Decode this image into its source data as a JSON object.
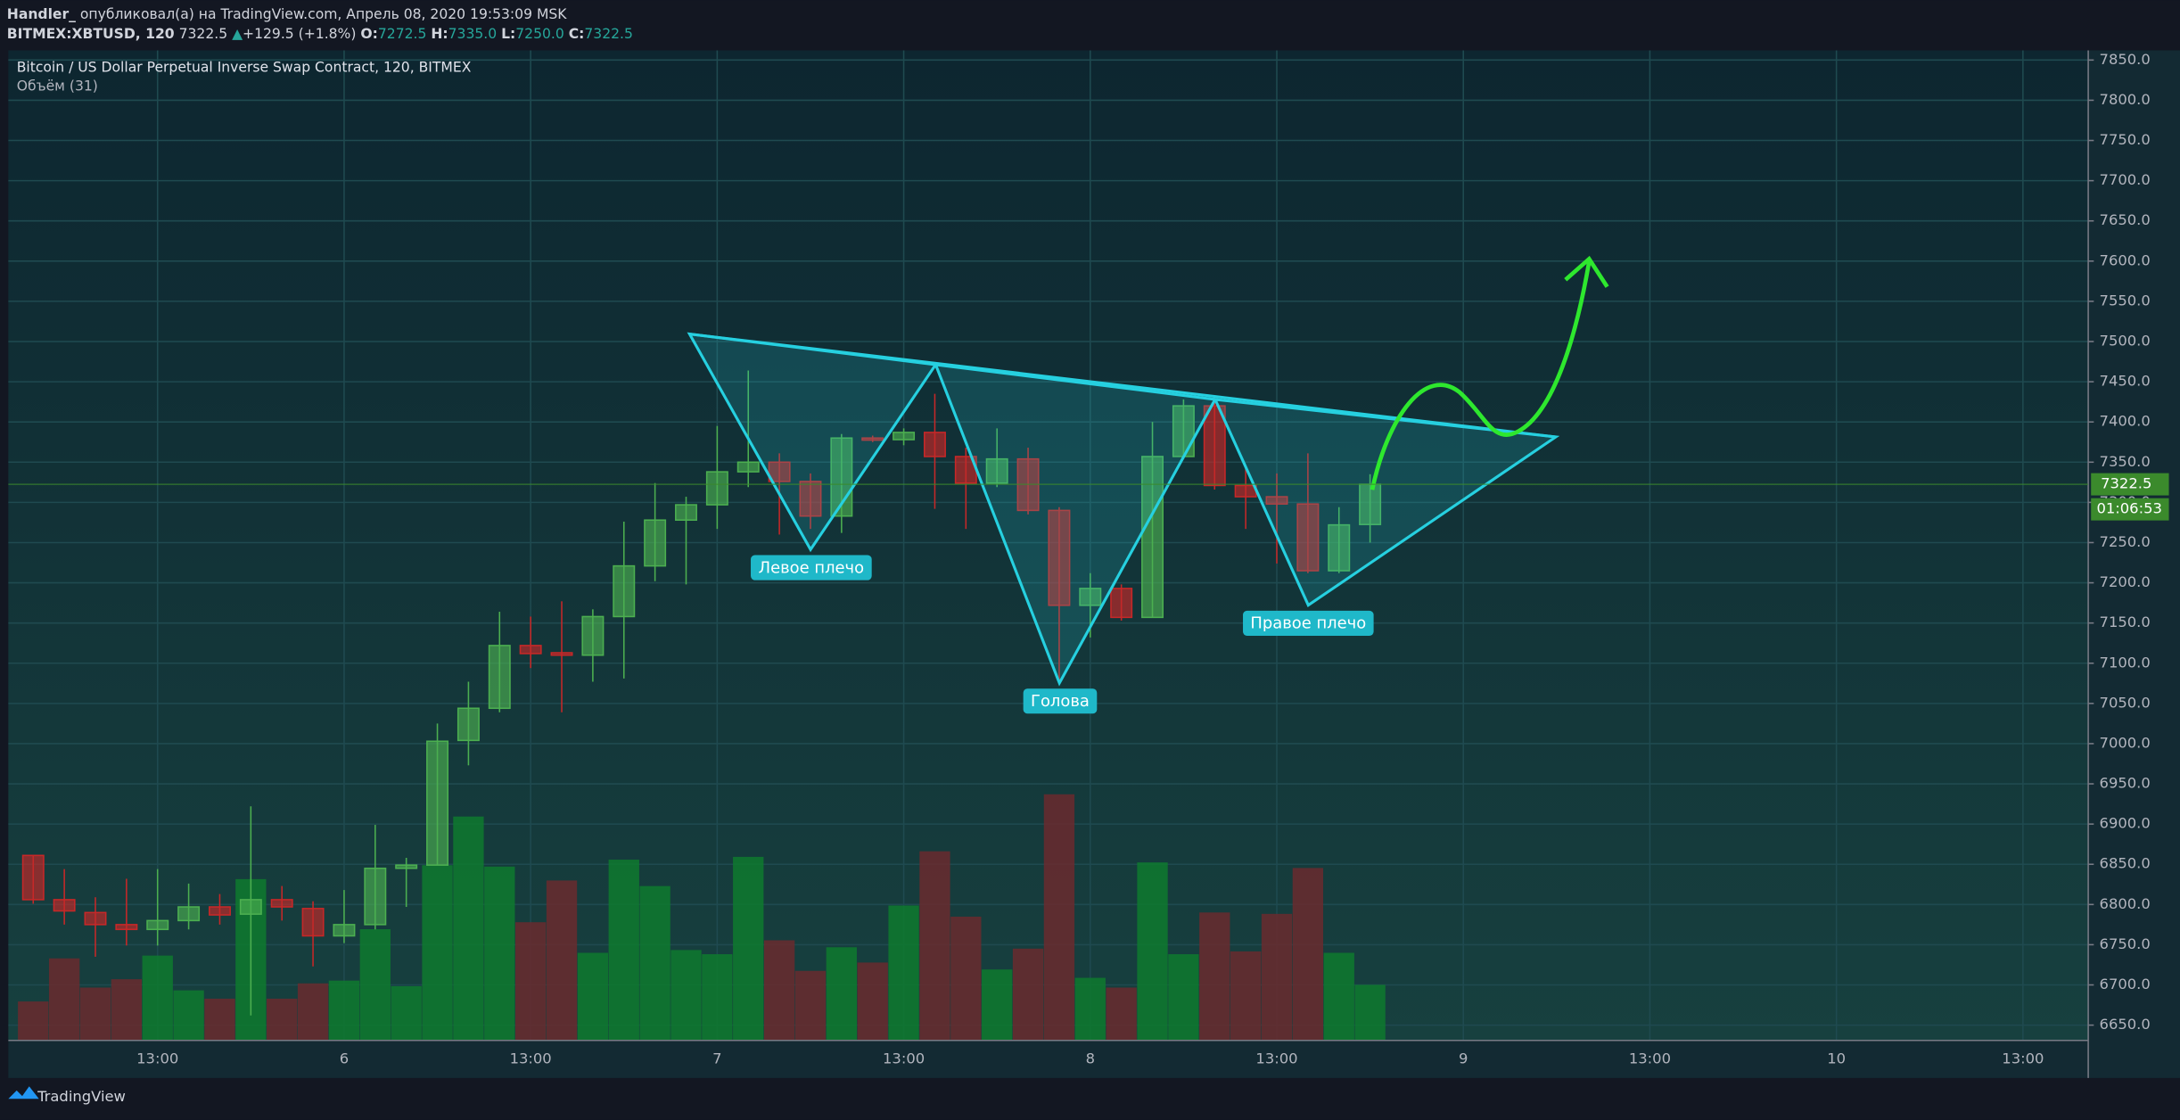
{
  "header": {
    "author": "Handler_",
    "published": "опубликовал(а) на TradingView.com, Апрель 08, 2020 19:53:09 MSK",
    "symbol": "BITMEX:XBTUSD, 120",
    "price": "7322.5",
    "change_arrow": "▲",
    "change": "+129.5 (+1.8%)",
    "ohlc": [
      {
        "key": "O:",
        "value": "7272.5"
      },
      {
        "key": "H:",
        "value": "7335.0"
      },
      {
        "key": "L:",
        "value": "7250.0"
      },
      {
        "key": "C:",
        "value": "7322.5"
      }
    ]
  },
  "chart_data": {
    "type": "candlestick",
    "title": "Bitcoin / US Dollar Perpetual Inverse Swap Contract, 120, BITMEX",
    "subtitle": "Объём (31)",
    "x": [
      0,
      1,
      2,
      3,
      4,
      5,
      6,
      7,
      8,
      9,
      10,
      11,
      12,
      13,
      14,
      15,
      16,
      17,
      18,
      19,
      20,
      21,
      22,
      23,
      24,
      25,
      26,
      27,
      28,
      29,
      30,
      31,
      32,
      33,
      34,
      35,
      36,
      37,
      38,
      39,
      40,
      41,
      42,
      43
    ],
    "open": [
      6861,
      6806,
      6790,
      6775,
      6769,
      6780,
      6797,
      6788,
      6806,
      6795,
      6761,
      6775,
      6845,
      6849,
      7004,
      7044,
      7122,
      7113,
      7110,
      7158,
      7221,
      7278,
      7297,
      7338,
      7350,
      7326,
      7283,
      7380,
      7378,
      7387,
      7357,
      7324,
      7354,
      7290,
      7172,
      7193,
      7157,
      7357,
      7420,
      7321,
      7307,
      7298,
      7215,
      7272.5
    ],
    "high": [
      6861,
      6844,
      6809,
      6832,
      6844,
      6826,
      6813,
      6922,
      6823,
      6804,
      6818,
      6899,
      6858,
      7025,
      7077,
      7164,
      7158,
      7177,
      7167,
      7276,
      7324,
      7307,
      7395,
      7464,
      7361,
      7336,
      7385,
      7383,
      7392,
      7435,
      7368,
      7392,
      7368,
      7294,
      7212,
      7198,
      7400,
      7428,
      7432,
      7345,
      7336,
      7361,
      7294,
      7335
    ],
    "low": [
      6801,
      6775,
      6735,
      6749,
      6749,
      6769,
      6775,
      6662,
      6780,
      6723,
      6752,
      6769,
      6797,
      6849,
      6973,
      7039,
      7094,
      7039,
      7077,
      7081,
      7202,
      7198,
      7267,
      7319,
      7260,
      7267,
      7262,
      7375,
      7371,
      7292,
      7267,
      7319,
      7285,
      7077,
      7132,
      7153,
      7157,
      7354,
      7316,
      7267,
      7224,
      7212,
      7212,
      7250
    ],
    "close": [
      6806,
      6792,
      6775,
      6769,
      6780,
      6797,
      6787,
      6806,
      6797,
      6761,
      6775,
      6845,
      6849,
      7003,
      7044,
      7122,
      7112,
      7110,
      7158,
      7221,
      7278,
      7297,
      7338,
      7350,
      7326,
      7283,
      7380,
      7378,
      7387,
      7357,
      7324,
      7354,
      7290,
      7172,
      7193,
      7157,
      7357,
      7420,
      7321,
      7307,
      7298,
      7215,
      7272,
      7322.5
    ],
    "volume": [
      28,
      59,
      38,
      44,
      61,
      36,
      30,
      116,
      30,
      41,
      43,
      80,
      39,
      126,
      161,
      125,
      85,
      115,
      63,
      130,
      111,
      65,
      62,
      132,
      72,
      50,
      67,
      56,
      97,
      136,
      89,
      51,
      66,
      177,
      45,
      38,
      128,
      62,
      92,
      64,
      91,
      124,
      63,
      40
    ],
    "volume_ylim": [
      0,
      712
    ],
    "up_color": "#4caf50",
    "down_color": "#c62828",
    "volume_up_color": "#0e7a2e",
    "volume_down_color": "#6a2a2e",
    "xlim": [
      -0.8,
      66.1
    ],
    "xticks": [
      {
        "value": 4,
        "label": "13:00"
      },
      {
        "value": 10,
        "label": "6"
      },
      {
        "value": 16,
        "label": "13:00"
      },
      {
        "value": 22,
        "label": "7"
      },
      {
        "value": 28,
        "label": "13:00"
      },
      {
        "value": 34,
        "label": "8"
      },
      {
        "value": 40,
        "label": "13:00"
      },
      {
        "value": 46,
        "label": "9"
      },
      {
        "value": 52,
        "label": "13:00"
      },
      {
        "value": 58,
        "label": "10"
      },
      {
        "value": 64,
        "label": "13:00"
      }
    ],
    "ylim": [
      6631,
      7862
    ],
    "yticks": [
      {
        "value": 6650,
        "label": "6650.0"
      },
      {
        "value": 6700,
        "label": "6700.0"
      },
      {
        "value": 6750,
        "label": "6750.0"
      },
      {
        "value": 6800,
        "label": "6800.0"
      },
      {
        "value": 6850,
        "label": "6850.0"
      },
      {
        "value": 6900,
        "label": "6900.0"
      },
      {
        "value": 6950,
        "label": "6950.0"
      },
      {
        "value": 7000,
        "label": "7000.0"
      },
      {
        "value": 7050,
        "label": "7050.0"
      },
      {
        "value": 7100,
        "label": "7100.0"
      },
      {
        "value": 7150,
        "label": "7150.0"
      },
      {
        "value": 7200,
        "label": "7200.0"
      },
      {
        "value": 7250,
        "label": "7250.0"
      },
      {
        "value": 7300,
        "label": "7300.0"
      },
      {
        "value": 7350,
        "label": "7350.0"
      },
      {
        "value": 7400,
        "label": "7400.0"
      },
      {
        "value": 7450,
        "label": "7450.0"
      },
      {
        "value": 7500,
        "label": "7500.0"
      },
      {
        "value": 7550,
        "label": "7550.0"
      },
      {
        "value": 7600,
        "label": "7600.0"
      },
      {
        "value": 7650,
        "label": "7650.0"
      },
      {
        "value": 7700,
        "label": "7700.0"
      },
      {
        "value": 7750,
        "label": "7750.0"
      },
      {
        "value": 7800,
        "label": "7800.0"
      },
      {
        "value": 7850,
        "label": "7850.0"
      }
    ],
    "grid": true,
    "last_price": 7322.5,
    "last_price_color": "#3b8a2c",
    "countdown": "01:06:53",
    "annotations": [
      "Левое плечо",
      "Голова",
      "Правое плечо"
    ]
  },
  "footer": "TradingView"
}
